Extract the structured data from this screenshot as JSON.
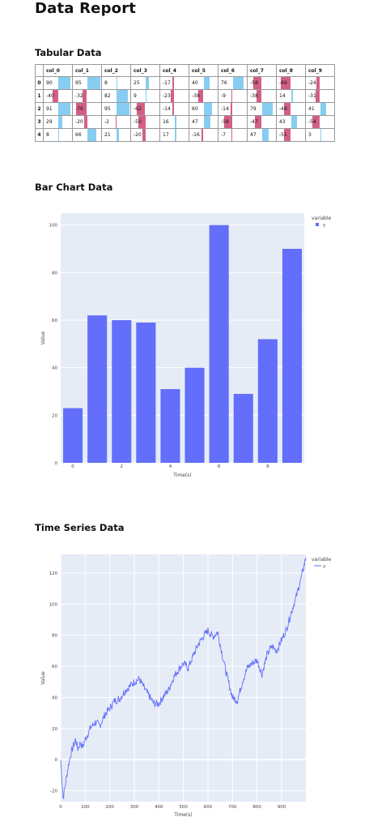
{
  "report": {
    "title": "Data Report",
    "table_heading": "Tabular Data",
    "bar_heading": "Bar Chart Data",
    "ts_heading": "Time Series Data"
  },
  "colors": {
    "positive": "#87cdf2",
    "negative": "#d35f86",
    "trace": "#636efa",
    "plot_bg": "#e5ecf6"
  },
  "table": {
    "columns": [
      "col_0",
      "col_1",
      "col_2",
      "col_3",
      "col_4",
      "col_5",
      "col_6",
      "col_7",
      "col_8",
      "col_9"
    ],
    "rows": [
      {
        "index": "0",
        "values": [
          90,
          95,
          8,
          25,
          -17,
          40,
          76,
          -58,
          -69,
          -24
        ]
      },
      {
        "index": "1",
        "values": [
          -40,
          -32,
          82,
          9,
          -23,
          -38,
          -9,
          -38,
          14,
          -31
        ]
      },
      {
        "index": "2",
        "values": [
          91,
          -76,
          95,
          -62,
          -14,
          60,
          -14,
          79,
          -49,
          41
        ]
      },
      {
        "index": "3",
        "values": [
          29,
          -20,
          -2,
          -50,
          16,
          47,
          -58,
          -47,
          43,
          -54
        ]
      },
      {
        "index": "4",
        "values": [
          8,
          66,
          21,
          -20,
          17,
          -16,
          -7,
          47,
          -51,
          3
        ]
      }
    ]
  },
  "chart_data": [
    {
      "type": "bar",
      "xlabel": "Time(s)",
      "ylabel": "Value",
      "legend_title": "variable",
      "legend_position": "top-right",
      "x": [
        0,
        1,
        2,
        3,
        4,
        5,
        6,
        7,
        8,
        9
      ],
      "xticks": [
        0,
        2,
        4,
        6,
        8
      ],
      "yticks": [
        0,
        20,
        40,
        60,
        80,
        100
      ],
      "ylim": [
        0,
        105
      ],
      "series": [
        {
          "name": "y",
          "values": [
            23,
            62,
            60,
            59,
            31,
            40,
            100,
            29,
            52,
            90
          ]
        }
      ]
    },
    {
      "type": "line",
      "xlabel": "Time(s)",
      "ylabel": "Value",
      "legend_title": "variable",
      "legend_position": "top-right",
      "xticks": [
        0,
        100,
        200,
        300,
        400,
        500,
        600,
        700,
        800,
        900
      ],
      "yticks": [
        -20,
        0,
        20,
        40,
        60,
        80,
        100,
        120
      ],
      "xlim": [
        0,
        999
      ],
      "ylim": [
        -27,
        132
      ],
      "series": [
        {
          "name": "y",
          "x": [
            0,
            10,
            20,
            30,
            40,
            50,
            60,
            70,
            80,
            90,
            100,
            120,
            140,
            160,
            180,
            200,
            220,
            240,
            260,
            280,
            300,
            320,
            340,
            360,
            380,
            400,
            420,
            440,
            460,
            480,
            500,
            520,
            540,
            560,
            580,
            600,
            620,
            640,
            660,
            680,
            700,
            720,
            740,
            760,
            780,
            800,
            820,
            840,
            860,
            880,
            900,
            920,
            940,
            960,
            980,
            999
          ],
          "values": [
            0,
            -25,
            -15,
            -5,
            3,
            8,
            13,
            7,
            11,
            8,
            13,
            20,
            24,
            22,
            29,
            33,
            38,
            39,
            44,
            47,
            50,
            52,
            46,
            41,
            36,
            36,
            41,
            45,
            53,
            58,
            62,
            59,
            67,
            74,
            79,
            83,
            79,
            82,
            66,
            52,
            40,
            38,
            50,
            59,
            62,
            64,
            55,
            67,
            73,
            70,
            77,
            84,
            95,
            105,
            117,
            130
          ]
        }
      ]
    }
  ]
}
